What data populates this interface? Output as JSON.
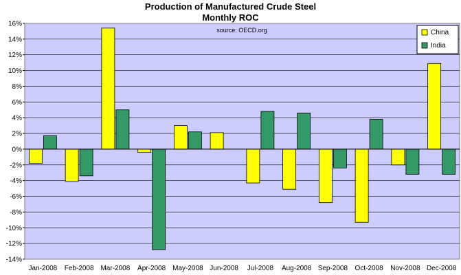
{
  "chart_data": {
    "type": "bar",
    "title": "Production of Manufactured Crude Steel",
    "subtitle": "Monthly ROC",
    "annotation": "source: OECD.org",
    "categories": [
      "Jan-2008",
      "Feb-2008",
      "Mar-2008",
      "Apr-2008",
      "May-2008",
      "Jun-2008",
      "Jul-2008",
      "Aug-2008",
      "Sep-2008",
      "Oct-2008",
      "Nov-2008",
      "Dec-2008"
    ],
    "series": [
      {
        "name": "China",
        "color": "#ffff00",
        "values": [
          -1.8,
          -4.1,
          15.4,
          -0.4,
          3.0,
          2.1,
          -4.3,
          -5.1,
          -6.8,
          -9.3,
          -2.0,
          10.9
        ]
      },
      {
        "name": "India",
        "color": "#339966",
        "values": [
          1.7,
          -3.4,
          5.0,
          -12.8,
          2.2,
          0.0,
          4.8,
          4.6,
          -2.4,
          3.8,
          -3.2,
          -3.2
        ]
      }
    ],
    "ylim": [
      -14,
      16
    ],
    "yticks": [
      "16%",
      "14%",
      "12%",
      "10%",
      "8%",
      "6%",
      "4%",
      "2%",
      "0%",
      "-2%",
      "-4%",
      "-6%",
      "-8%",
      "-10%",
      "-12%",
      "-14%"
    ],
    "legend_position": "top-right",
    "grid": true,
    "plot_background": "#ccccff"
  }
}
